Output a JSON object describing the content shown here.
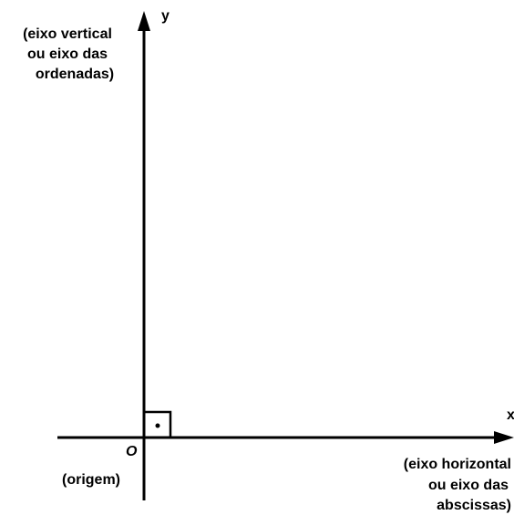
{
  "axes": {
    "y_axis": {
      "name": "y",
      "description": [
        "(eixo vertical",
        "ou eixo das",
        "ordenadas)"
      ]
    },
    "x_axis": {
      "name": "x",
      "description": [
        "(eixo horizontal",
        "ou eixo das",
        "abscissas)"
      ]
    },
    "origin": {
      "name": "O",
      "description": "(origem)"
    }
  }
}
